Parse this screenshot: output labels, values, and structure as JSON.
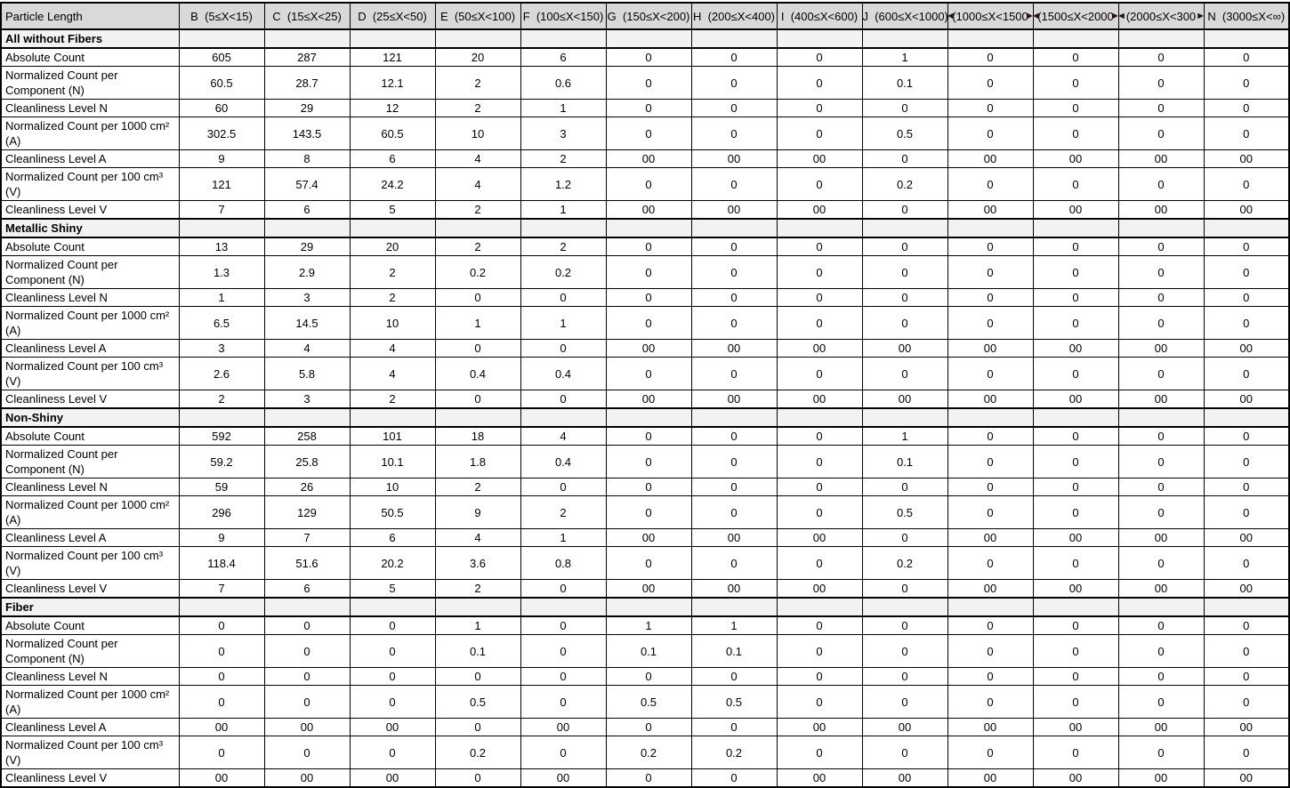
{
  "colors": {
    "header_bg": "#d9d9d9",
    "section_bg": "#f2f2f2",
    "border": "#000000",
    "text": "#000000"
  },
  "icons": {
    "overflow_left_marker": "◀",
    "overflow_right_marker": "▶"
  },
  "table": {
    "header_row": {
      "particle_length_label": "Particle Length",
      "size_class_columns": [
        {
          "label": "B  (5≤X<15)",
          "clipped": false
        },
        {
          "label": "C  (15≤X<25)",
          "clipped": false
        },
        {
          "label": "D  (25≤X<50)",
          "clipped": false
        },
        {
          "label": "E  (50≤X<100)",
          "clipped": false
        },
        {
          "label": "F  (100≤X<150)",
          "clipped": false
        },
        {
          "label": "G  (150≤X<200)",
          "clipped": false
        },
        {
          "label": "H  (200≤X<400)",
          "clipped": false
        },
        {
          "label": "I  (400≤X<600)",
          "clipped": false
        },
        {
          "label": "J  (600≤X<1000)",
          "clipped": false
        },
        {
          "label": "(1000≤X<1500",
          "clipped": true
        },
        {
          "label": "(1500≤X<2000",
          "clipped": true
        },
        {
          "label": "(2000≤X<300",
          "clipped": true
        },
        {
          "label": "N  (3000≤X<∞)",
          "clipped": false
        }
      ]
    },
    "sections": [
      {
        "title": "All without Fibers",
        "rows": [
          {
            "label": "Absolute Count",
            "values": [
              "605",
              "287",
              "121",
              "20",
              "6",
              "0",
              "0",
              "0",
              "1",
              "0",
              "0",
              "0",
              "0"
            ]
          },
          {
            "label": "Normalized Count per Component (N)",
            "values": [
              "60.5",
              "28.7",
              "12.1",
              "2",
              "0.6",
              "0",
              "0",
              "0",
              "0.1",
              "0",
              "0",
              "0",
              "0"
            ]
          },
          {
            "label": "Cleanliness Level N",
            "values": [
              "60",
              "29",
              "12",
              "2",
              "1",
              "0",
              "0",
              "0",
              "0",
              "0",
              "0",
              "0",
              "0"
            ]
          },
          {
            "label": "Normalized Count per 1000 cm² (A)",
            "values": [
              "302.5",
              "143.5",
              "60.5",
              "10",
              "3",
              "0",
              "0",
              "0",
              "0.5",
              "0",
              "0",
              "0",
              "0"
            ]
          },
          {
            "label": "Cleanliness Level A",
            "values": [
              "9",
              "8",
              "6",
              "4",
              "2",
              "00",
              "00",
              "00",
              "0",
              "00",
              "00",
              "00",
              "00"
            ]
          },
          {
            "label": "Normalized Count per 100 cm³ (V)",
            "values": [
              "121",
              "57.4",
              "24.2",
              "4",
              "1.2",
              "0",
              "0",
              "0",
              "0.2",
              "0",
              "0",
              "0",
              "0"
            ]
          },
          {
            "label": "Cleanliness Level V",
            "values": [
              "7",
              "6",
              "5",
              "2",
              "1",
              "00",
              "00",
              "00",
              "0",
              "00",
              "00",
              "00",
              "00"
            ]
          }
        ]
      },
      {
        "title": "Metallic Shiny",
        "rows": [
          {
            "label": "Absolute Count",
            "values": [
              "13",
              "29",
              "20",
              "2",
              "2",
              "0",
              "0",
              "0",
              "0",
              "0",
              "0",
              "0",
              "0"
            ]
          },
          {
            "label": "Normalized Count per Component (N)",
            "values": [
              "1.3",
              "2.9",
              "2",
              "0.2",
              "0.2",
              "0",
              "0",
              "0",
              "0",
              "0",
              "0",
              "0",
              "0"
            ]
          },
          {
            "label": "Cleanliness Level N",
            "values": [
              "1",
              "3",
              "2",
              "0",
              "0",
              "0",
              "0",
              "0",
              "0",
              "0",
              "0",
              "0",
              "0"
            ]
          },
          {
            "label": "Normalized Count per 1000 cm² (A)",
            "values": [
              "6.5",
              "14.5",
              "10",
              "1",
              "1",
              "0",
              "0",
              "0",
              "0",
              "0",
              "0",
              "0",
              "0"
            ]
          },
          {
            "label": "Cleanliness Level A",
            "values": [
              "3",
              "4",
              "4",
              "0",
              "0",
              "00",
              "00",
              "00",
              "00",
              "00",
              "00",
              "00",
              "00"
            ]
          },
          {
            "label": "Normalized Count per 100 cm³ (V)",
            "values": [
              "2.6",
              "5.8",
              "4",
              "0.4",
              "0.4",
              "0",
              "0",
              "0",
              "0",
              "0",
              "0",
              "0",
              "0"
            ]
          },
          {
            "label": "Cleanliness Level V",
            "values": [
              "2",
              "3",
              "2",
              "0",
              "0",
              "00",
              "00",
              "00",
              "00",
              "00",
              "00",
              "00",
              "00"
            ]
          }
        ]
      },
      {
        "title": "Non-Shiny",
        "rows": [
          {
            "label": "Absolute Count",
            "values": [
              "592",
              "258",
              "101",
              "18",
              "4",
              "0",
              "0",
              "0",
              "1",
              "0",
              "0",
              "0",
              "0"
            ]
          },
          {
            "label": "Normalized Count per Component (N)",
            "values": [
              "59.2",
              "25.8",
              "10.1",
              "1.8",
              "0.4",
              "0",
              "0",
              "0",
              "0.1",
              "0",
              "0",
              "0",
              "0"
            ]
          },
          {
            "label": "Cleanliness Level N",
            "values": [
              "59",
              "26",
              "10",
              "2",
              "0",
              "0",
              "0",
              "0",
              "0",
              "0",
              "0",
              "0",
              "0"
            ]
          },
          {
            "label": "Normalized Count per 1000 cm² (A)",
            "values": [
              "296",
              "129",
              "50.5",
              "9",
              "2",
              "0",
              "0",
              "0",
              "0.5",
              "0",
              "0",
              "0",
              "0"
            ]
          },
          {
            "label": "Cleanliness Level A",
            "values": [
              "9",
              "7",
              "6",
              "4",
              "1",
              "00",
              "00",
              "00",
              "0",
              "00",
              "00",
              "00",
              "00"
            ]
          },
          {
            "label": "Normalized Count per 100 cm³ (V)",
            "values": [
              "118.4",
              "51.6",
              "20.2",
              "3.6",
              "0.8",
              "0",
              "0",
              "0",
              "0.2",
              "0",
              "0",
              "0",
              "0"
            ]
          },
          {
            "label": "Cleanliness Level V",
            "values": [
              "7",
              "6",
              "5",
              "2",
              "0",
              "00",
              "00",
              "00",
              "0",
              "00",
              "00",
              "00",
              "00"
            ]
          }
        ]
      },
      {
        "title": "Fiber",
        "rows": [
          {
            "label": "Absolute Count",
            "values": [
              "0",
              "0",
              "0",
              "1",
              "0",
              "1",
              "1",
              "0",
              "0",
              "0",
              "0",
              "0",
              "0"
            ]
          },
          {
            "label": "Normalized Count per Component (N)",
            "values": [
              "0",
              "0",
              "0",
              "0.1",
              "0",
              "0.1",
              "0.1",
              "0",
              "0",
              "0",
              "0",
              "0",
              "0"
            ]
          },
          {
            "label": "Cleanliness Level N",
            "values": [
              "0",
              "0",
              "0",
              "0",
              "0",
              "0",
              "0",
              "0",
              "0",
              "0",
              "0",
              "0",
              "0"
            ]
          },
          {
            "label": "Normalized Count per 1000 cm² (A)",
            "values": [
              "0",
              "0",
              "0",
              "0.5",
              "0",
              "0.5",
              "0.5",
              "0",
              "0",
              "0",
              "0",
              "0",
              "0"
            ]
          },
          {
            "label": "Cleanliness Level A",
            "values": [
              "00",
              "00",
              "00",
              "0",
              "00",
              "0",
              "0",
              "00",
              "00",
              "00",
              "00",
              "00",
              "00"
            ]
          },
          {
            "label": "Normalized Count per 100 cm³ (V)",
            "values": [
              "0",
              "0",
              "0",
              "0.2",
              "0",
              "0.2",
              "0.2",
              "0",
              "0",
              "0",
              "0",
              "0",
              "0"
            ]
          },
          {
            "label": "Cleanliness Level V",
            "values": [
              "00",
              "00",
              "00",
              "0",
              "00",
              "0",
              "0",
              "00",
              "00",
              "00",
              "00",
              "00",
              "00"
            ]
          }
        ]
      }
    ]
  }
}
